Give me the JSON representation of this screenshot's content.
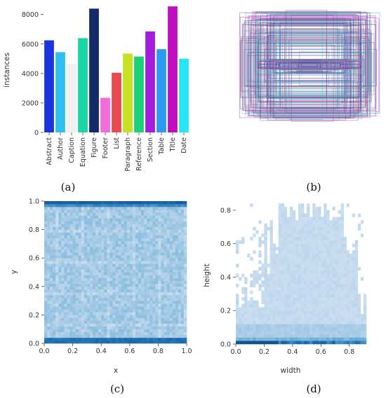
{
  "chart_data": [
    {
      "type": "bar",
      "panel_label": "(a)",
      "xlabel": "",
      "ylabel": "instances",
      "ylim": [
        0,
        8700
      ],
      "yticks": [
        0,
        2000,
        4000,
        6000,
        8000
      ],
      "categories": [
        "Abstract",
        "Author",
        "Caption",
        "Equation",
        "Figure",
        "Footer",
        "List",
        "Paragraph",
        "Reference",
        "Section",
        "Table",
        "Title",
        "Date"
      ],
      "values": [
        6250,
        5450,
        4650,
        6400,
        8400,
        2350,
        4050,
        5350,
        5150,
        6850,
        5650,
        8550,
        5000
      ],
      "colors": [
        "#1a34e0",
        "#2fc0f0",
        "#f0f0f0",
        "#18d6a6",
        "#152a68",
        "#f56bd9",
        "#e84a50",
        "#c9e020",
        "#1ad17a",
        "#a41ce0",
        "#2a9bf0",
        "#c00ec0",
        "#26e6f5"
      ]
    },
    {
      "type": "overlay-boxes",
      "panel_label": "(b)",
      "xlabel": "",
      "ylabel": "",
      "colors": [
        "#8a6b9e",
        "#b01fb0",
        "#7f3a92",
        "#22348f",
        "#2b9ad6",
        "#22c6a6",
        "#aaaaaa"
      ]
    },
    {
      "type": "heatmap",
      "panel_label": "(c)",
      "xlabel": "x",
      "ylabel": "y",
      "xlim": [
        0,
        1
      ],
      "ylim": [
        0,
        1
      ],
      "xticks": [
        0.0,
        0.2,
        0.4,
        0.6,
        0.8,
        1.0
      ],
      "yticks": [
        0.0,
        0.2,
        0.4,
        0.6,
        0.8,
        1.0
      ],
      "cmap": "Blues"
    },
    {
      "type": "heatmap",
      "panel_label": "(d)",
      "xlabel": "width",
      "ylabel": "height",
      "xlim": [
        0,
        0.95
      ],
      "ylim": [
        0,
        0.85
      ],
      "xticks": [
        0.0,
        0.2,
        0.4,
        0.6,
        0.8
      ],
      "yticks": [
        0.0,
        0.2,
        0.4,
        0.6,
        0.8
      ],
      "cmap": "Blues"
    }
  ]
}
